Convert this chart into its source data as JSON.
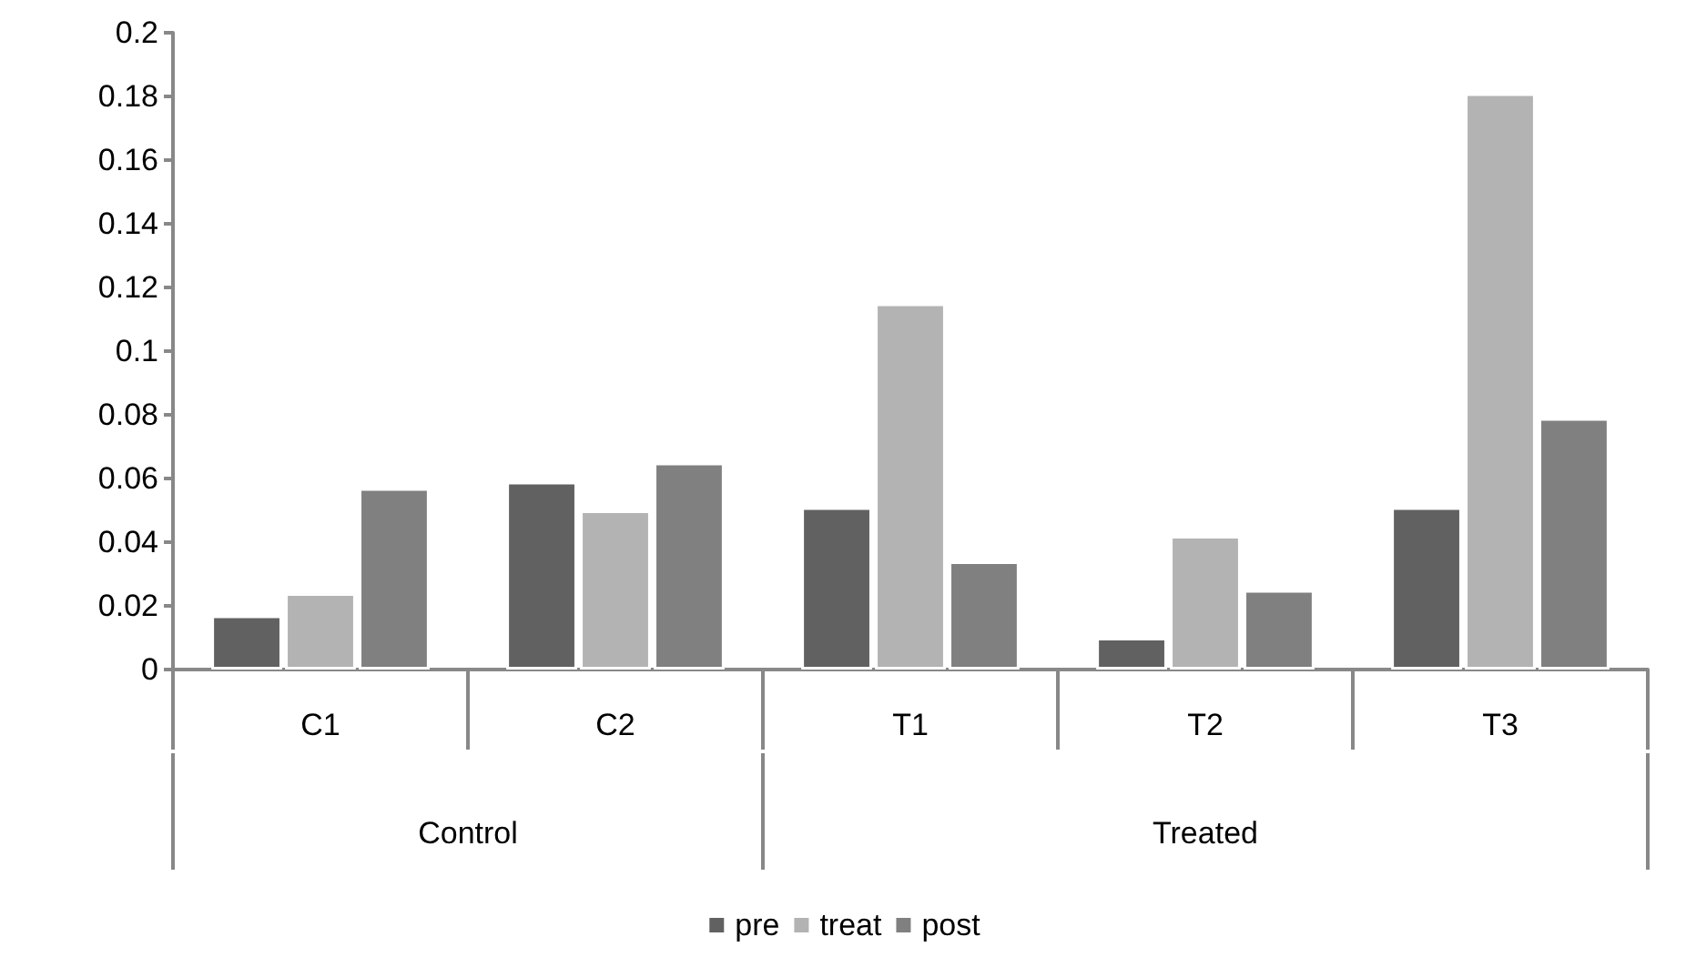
{
  "chart_data": {
    "type": "bar",
    "categories": [
      "C1",
      "C2",
      "T1",
      "T2",
      "T3"
    ],
    "series": [
      {
        "name": "pre",
        "color": "#616161",
        "values": [
          0.017,
          0.059,
          0.051,
          0.01,
          0.051
        ]
      },
      {
        "name": "treat",
        "color": "#b3b3b3",
        "values": [
          0.024,
          0.05,
          0.115,
          0.042,
          0.181
        ]
      },
      {
        "name": "post",
        "color": "#808080",
        "values": [
          0.057,
          0.065,
          0.034,
          0.025,
          0.079
        ]
      }
    ],
    "ylim": [
      0,
      0.2
    ],
    "yticks": [
      0,
      0.02,
      0.04,
      0.06,
      0.08,
      0.1,
      0.12,
      0.14,
      0.16,
      0.18,
      0.2
    ],
    "annotations": [
      "Control",
      "Treated"
    ],
    "grid": false,
    "legend": "bottom"
  }
}
